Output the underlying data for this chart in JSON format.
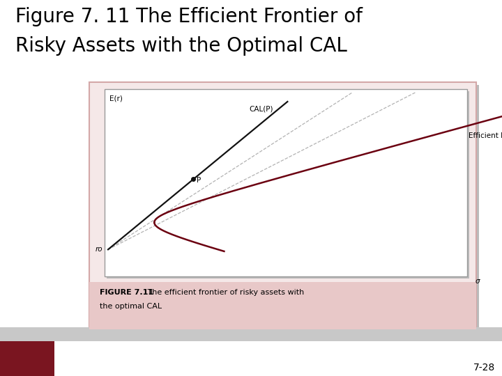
{
  "title_line1": "Figure 7. 11 The Efficient Frontier of",
  "title_line2": "Risky Assets with the Optimal CAL",
  "title_fontsize": 20,
  "title_color": "#000000",
  "bg_color": "#ffffff",
  "outer_frame_facecolor": "#f5e8e8",
  "outer_frame_edgecolor": "#d4a8a8",
  "caption_bg": "#e8c8c8",
  "caption_bold": "FIGURE 7.11",
  "caption_text": "   The efficient frontier of risky assets with",
  "caption_text2": "the optimal CAL",
  "inner_facecolor": "#ffffff",
  "inner_edgecolor": "#999999",
  "cal_label": "CAL(P)",
  "frontier_label": "Efficient Frontier",
  "rf_label": "rᴏ",
  "sigma_label": "σ",
  "er_label": "E(r)",
  "point_label": "P",
  "page_number": "7-28",
  "dark_red_color": "#6b0010",
  "black_color": "#111111",
  "dashed_color": "#aaaaaa",
  "bottom_bar_color": "#c8c8c8",
  "dark_red_sq_color": "#7a1520",
  "shadow_color": "#bbbbbb"
}
